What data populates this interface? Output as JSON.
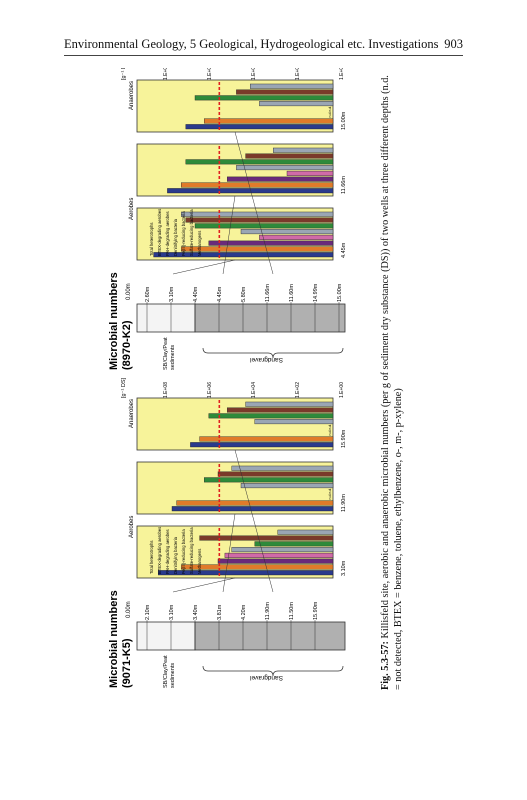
{
  "header": {
    "running_title": "Environmental Geology, 5 Geological, Hydrogeological etc. Investigations",
    "page_number": "903"
  },
  "caption": {
    "label": "Fig. 5.3-57:",
    "text": " Killisfeld site, aerobic and anaerobic microbial numbers (per g of sediment dry substance (DS)) of two wells at three different depths (n.d. = not detected, BTEX = benzene, toluene, ethylbenzene, o-, m-, p-xylene)"
  },
  "figure": {
    "colors": {
      "panel": "#f7f39a",
      "total": "#2a3a8c",
      "orange": "#e07b2a",
      "purple": "#6a2a7a",
      "pink": "#d06aa8",
      "gray": "#9aa6b4",
      "green": "#2e8a3a",
      "brown": "#7a3a2a",
      "yellow": "#f0c020",
      "redline": "#e02020",
      "silt": "#f4f4f4",
      "sand": "#b0b0b0"
    },
    "wells": [
      {
        "title_line1": "Microbial numbers",
        "title_line2": "(9071-K5)",
        "top_depth": "0.00m",
        "layer_top": "SB/Clay/Peat",
        "layer_bottom": "sediments",
        "sand_label": "Sandgravel",
        "depth_labels": [
          "2.10m",
          "3.10m",
          "3.40m",
          "3.81m",
          "4.20m",
          "11.90m",
          "11.50m",
          "15.90m"
        ],
        "aerobic_label": "Aerobes",
        "anaerobic_label": "Anaerobes",
        "axis_ticks": [
          "1.E+00",
          "1.E+02",
          "1.E+04",
          "1.E+06",
          "1.E+08"
        ],
        "unit": "[g⁻¹ DS]",
        "legend": [
          "Total heterotrophs",
          "BTEX-degrading aerobes",
          "PAH-degrading aerobes",
          "Denitrifying bacteria",
          "Fe(III)-reducing bacteria",
          "Sulfate-reducing bacteria",
          "Methanogens"
        ],
        "panels": [
          {
            "depth": "3.10m",
            "values": [
              7.6,
              6.6,
              5.0,
              4.7,
              4.4,
              3.4,
              5.8,
              2.4
            ]
          },
          {
            "depth": "11.90m",
            "values": [
              7.0,
              6.8,
              0,
              0,
              4.0,
              5.6,
              5.0,
              4.4
            ]
          },
          {
            "depth": "15.90m",
            "values": [
              6.2,
              5.8,
              0,
              0,
              3.4,
              5.4,
              4.6,
              3.8
            ]
          }
        ]
      },
      {
        "title_line1": "Microbial numbers",
        "title_line2": "(8970-K2)",
        "top_depth": "0.00m",
        "layer_top": "SB/Clay/Peat",
        "layer_bottom": "sediments",
        "sand_label": "Sandgravel",
        "depth_labels": [
          "2.60m",
          "3.10m",
          "4.40m",
          "4.45m",
          "5.80m",
          "11.66m",
          "11.60m",
          "14.99m",
          "15.00m"
        ],
        "aerobic_label": "Aerobes",
        "anaerobic_label": "Anaerobes",
        "axis_ticks": [
          "1.E+00",
          "1.E+02",
          "1.E+04",
          "1.E+06",
          "1.E+08"
        ],
        "unit": "[g⁻¹ DS]",
        "legend": [
          "Total heterotrophs",
          "BTEX-degrading aerobes",
          "PAH-degrading aerobes",
          "Denitrifying bacteria",
          "Fe(III)-reducing bacteria",
          "Sulfate-reducing bacteria",
          "Methanogens"
        ],
        "panels": [
          {
            "depth": "4.45m",
            "values": [
              7.8,
              6.6,
              5.4,
              3.2,
              4.0,
              6.0,
              6.4,
              6.6
            ]
          },
          {
            "depth": "11.66m",
            "values": [
              7.2,
              6.6,
              4.6,
              2.0,
              4.2,
              6.4,
              3.8,
              2.6
            ]
          },
          {
            "depth": "15.00m",
            "values": [
              6.4,
              5.6,
              0,
              0,
              3.2,
              6.0,
              4.2,
              3.6
            ]
          }
        ]
      }
    ]
  }
}
